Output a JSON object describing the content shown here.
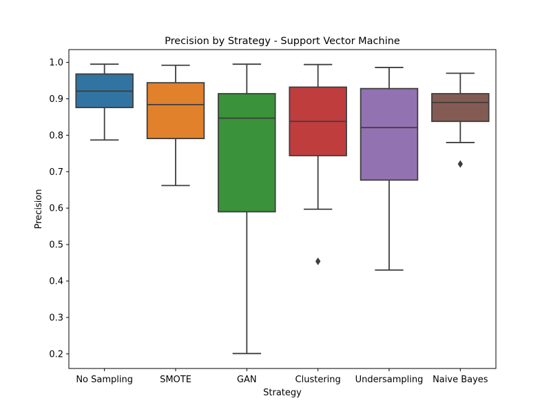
{
  "chart_data": {
    "type": "box",
    "title": "Precision by Strategy - Support Vector Machine",
    "xlabel": "Strategy",
    "ylabel": "Precision",
    "ylim": [
      0.16,
      1.035
    ],
    "yticks": [
      "0.2",
      "0.3",
      "0.4",
      "0.5",
      "0.6",
      "0.7",
      "0.8",
      "0.9",
      "1.0"
    ],
    "grid": false,
    "categories": [
      "No Sampling",
      "SMOTE",
      "GAN",
      "Clustering",
      "Undersampling",
      "Naive Bayes"
    ],
    "colors": [
      "#3274a1",
      "#e1812c",
      "#3a923a",
      "#c03d3e",
      "#9372b2",
      "#845b53"
    ],
    "edge_color": "#3d3d3d",
    "boxes": [
      {
        "whisker_low": 0.787,
        "q1": 0.876,
        "median": 0.921,
        "q3": 0.968,
        "whisker_high": 0.995,
        "outliers": []
      },
      {
        "whisker_low": 0.662,
        "q1": 0.791,
        "median": 0.884,
        "q3": 0.944,
        "whisker_high": 0.992,
        "outliers": []
      },
      {
        "whisker_low": 0.201,
        "q1": 0.59,
        "median": 0.847,
        "q3": 0.914,
        "whisker_high": 0.995,
        "outliers": []
      },
      {
        "whisker_low": 0.597,
        "q1": 0.744,
        "median": 0.838,
        "q3": 0.932,
        "whisker_high": 0.994,
        "outliers": [
          0.454
        ]
      },
      {
        "whisker_low": 0.43,
        "q1": 0.677,
        "median": 0.821,
        "q3": 0.928,
        "whisker_high": 0.986,
        "outliers": []
      },
      {
        "whisker_low": 0.78,
        "q1": 0.838,
        "median": 0.89,
        "q3": 0.914,
        "whisker_high": 0.97,
        "outliers": [
          0.721
        ]
      }
    ]
  }
}
